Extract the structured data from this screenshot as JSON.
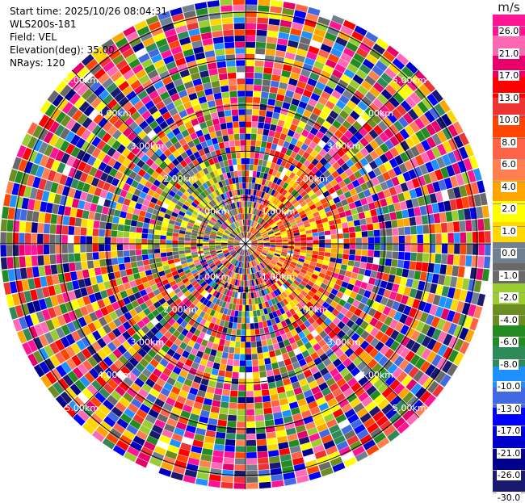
{
  "header": {
    "start_time": "Start time: 2025/10/26 08:04:31",
    "instrument": "WLS200s-181",
    "field": "Field: VEL",
    "elevation": "Elevation(deg): 35.00",
    "nrays": "NRays: 120"
  },
  "chart_data": {
    "type": "heatmap",
    "projection": "polar",
    "title": "",
    "range_ring_labels": [
      "1.00km",
      "2.00km",
      "3.00km",
      "4.00km",
      "5.00km"
    ],
    "range_rings_km": [
      1,
      2,
      3,
      4,
      5
    ],
    "n_rays": 120,
    "azimuth_spokes_deg": [
      0,
      45,
      90,
      135,
      180,
      225,
      270,
      315
    ],
    "colorbar": {
      "unit": "m/s",
      "ticks": [
        "26.0",
        "21.0",
        "17.0",
        "13.0",
        "10.0",
        "8.0",
        "6.0",
        "4.0",
        "2.0",
        "1.0",
        "0.0",
        "-1.0",
        "-2.0",
        "-4.0",
        "-6.0",
        "-8.0",
        "-10.0",
        "-13.0",
        "-17.0",
        "-21.0",
        "-26.0",
        "-30.0"
      ],
      "colors": [
        "#ff1493",
        "#ff69b4",
        "#e8006a",
        "#ff0000",
        "#ee3333",
        "#ff4500",
        "#ff6347",
        "#ff7f50",
        "#ffa500",
        "#ffff00",
        "#ffd700",
        "#708090",
        "#696969",
        "#9acd32",
        "#6b8e23",
        "#228b22",
        "#2e8b57",
        "#1e90ff",
        "#4169e1",
        "#0000ff",
        "#0000cd",
        "#00008b",
        "#191970"
      ]
    }
  }
}
